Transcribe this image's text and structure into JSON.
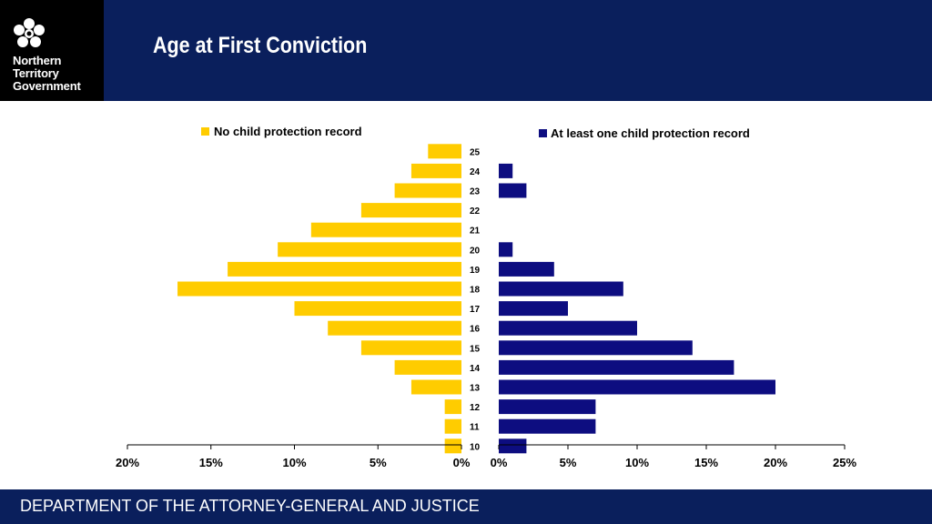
{
  "header": {
    "logo_lines": [
      "Northern",
      "Territory",
      "Government"
    ],
    "title": "Age at First Conviction"
  },
  "footer": {
    "text": "DEPARTMENT OF THE ATTORNEY-GENERAL AND JUSTICE"
  },
  "colors": {
    "navy": "#0a1f5c",
    "yellow": "#ffcc00",
    "bar_navy": "#0d0d80"
  },
  "chart_data": [
    {
      "type": "bar",
      "orientation": "horizontal",
      "direction": "reversed",
      "series": [
        {
          "name": "No child protection record",
          "values": [
            1,
            1,
            1,
            3,
            4,
            6,
            8,
            10,
            17,
            14,
            11,
            9,
            6,
            4,
            3,
            2
          ]
        }
      ],
      "categories": [
        "10",
        "11",
        "12",
        "13",
        "14",
        "15",
        "16",
        "17",
        "18",
        "19",
        "20",
        "21",
        "22",
        "23",
        "24",
        "25"
      ],
      "xlim": [
        0,
        20
      ],
      "x_ticks": [
        "20%",
        "15%",
        "10%",
        "5%",
        "0%"
      ],
      "legend": "top"
    },
    {
      "type": "bar",
      "orientation": "horizontal",
      "series": [
        {
          "name": "At least one child protection record",
          "values": [
            2,
            7,
            7,
            20,
            17,
            14,
            10,
            5,
            9,
            4,
            1,
            0,
            0,
            2,
            1,
            0
          ]
        }
      ],
      "categories": [
        "10",
        "11",
        "12",
        "13",
        "14",
        "15",
        "16",
        "17",
        "18",
        "19",
        "20",
        "21",
        "22",
        "23",
        "24",
        "25"
      ],
      "xlim": [
        0,
        25
      ],
      "x_ticks": [
        "0%",
        "5%",
        "10%",
        "15%",
        "20%",
        "25%"
      ],
      "legend": "top"
    }
  ]
}
